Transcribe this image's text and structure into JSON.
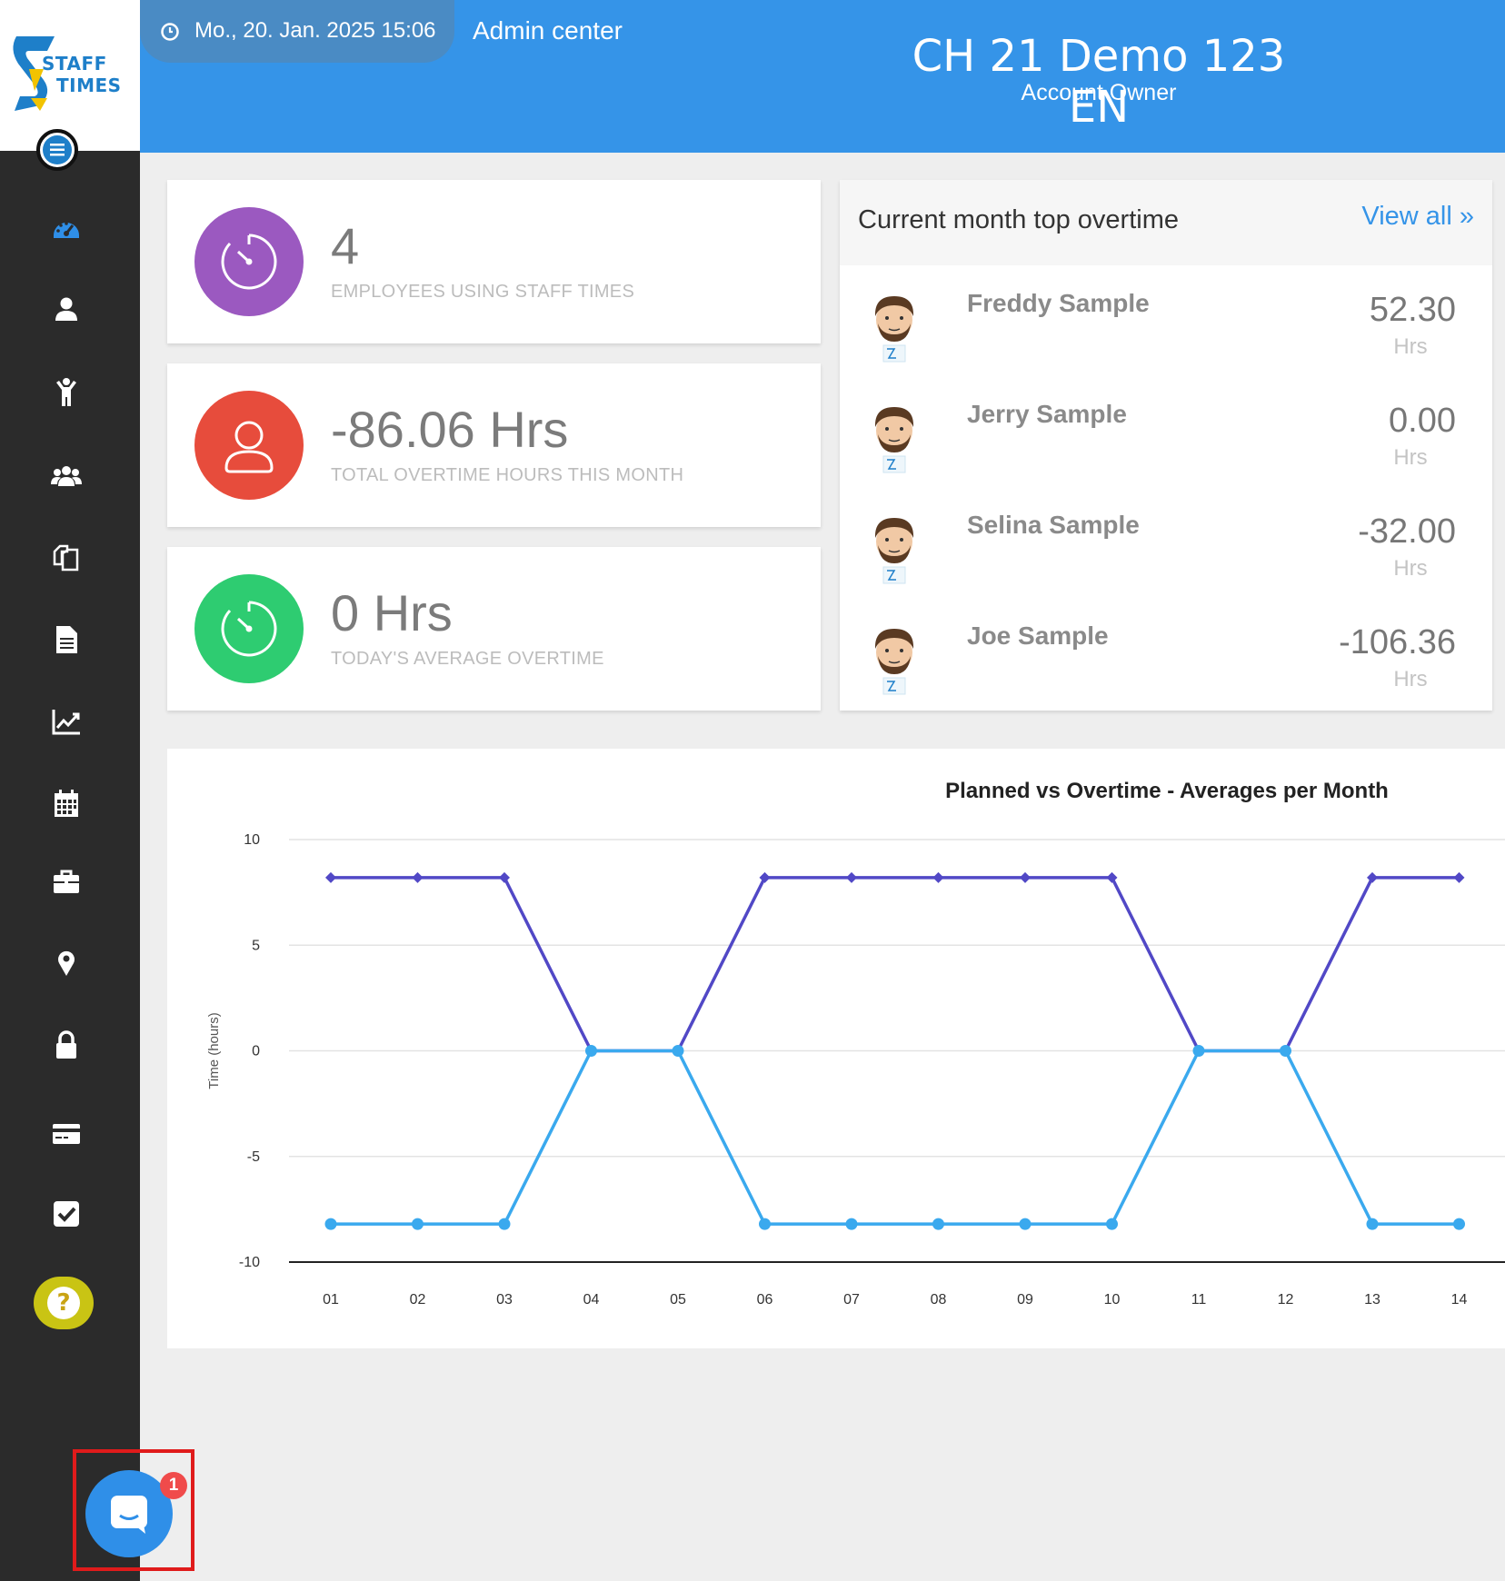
{
  "header": {
    "datetime": "Mo., 20. Jan. 2025 15:06",
    "admin_center": "Admin center",
    "company_name": "CH 21 Demo 123 EN",
    "role": "Account Owner"
  },
  "logo": {
    "word1": "STAFF",
    "word2": "TIMES"
  },
  "sidebar": {
    "items": [
      {
        "name": "dashboard",
        "icon": "dashboard-icon",
        "active": true
      },
      {
        "name": "profile",
        "icon": "user-icon"
      },
      {
        "name": "employees",
        "icon": "person-raised-arms-icon"
      },
      {
        "name": "teams",
        "icon": "group-icon"
      },
      {
        "name": "documents",
        "icon": "copy-icon"
      },
      {
        "name": "reports",
        "icon": "file-text-icon"
      },
      {
        "name": "statistics",
        "icon": "line-chart-icon"
      },
      {
        "name": "calendar",
        "icon": "calendar-icon"
      },
      {
        "name": "projects",
        "icon": "briefcase-icon"
      },
      {
        "name": "locations",
        "icon": "map-pin-icon"
      },
      {
        "name": "security",
        "icon": "lock-icon"
      },
      {
        "name": "billing",
        "icon": "credit-card-icon"
      },
      {
        "name": "tasks",
        "icon": "checkbox-icon"
      }
    ],
    "help_label": "?"
  },
  "stats": [
    {
      "value": "4",
      "label": "EMPLOYEES USING STAFF TIMES",
      "color": "#9b59c0"
    },
    {
      "value": "-86.06 Hrs",
      "label": "TOTAL OVERTIME HOURS THIS MONTH",
      "color": "#e74c3c"
    },
    {
      "value": "0 Hrs",
      "label": "TODAY'S AVERAGE OVERTIME",
      "color": "#2ecc71"
    }
  ],
  "top_overtime": {
    "title": "Current month top overtime",
    "view_all": "View all",
    "unit": "Hrs",
    "rows": [
      {
        "name": "Freddy Sample",
        "hours": "52.30"
      },
      {
        "name": "Jerry Sample",
        "hours": "0.00"
      },
      {
        "name": "Selina Sample",
        "hours": "-32.00"
      },
      {
        "name": "Joe Sample",
        "hours": "-106.36"
      }
    ]
  },
  "chat": {
    "badge": "1"
  },
  "chart_data": {
    "type": "line",
    "title": "Planned vs Overtime - Averages per Month",
    "ylabel": "Time (hours)",
    "xlabel": "",
    "categories": [
      "01",
      "02",
      "03",
      "04",
      "05",
      "06",
      "07",
      "08",
      "09",
      "10",
      "11",
      "12",
      "13",
      "14"
    ],
    "ylim": [
      -10,
      10
    ],
    "yticks": [
      10,
      5,
      0,
      -5,
      -10
    ],
    "grid": true,
    "series": [
      {
        "color": "#5148c6",
        "marker": "diamond",
        "values": [
          8.2,
          8.2,
          8.2,
          0,
          0,
          8.2,
          8.2,
          8.2,
          8.2,
          8.2,
          0,
          0,
          8.2,
          8.2
        ]
      },
      {
        "color": "#3aa9ee",
        "marker": "circle",
        "values": [
          -8.2,
          -8.2,
          -8.2,
          0,
          0,
          -8.2,
          -8.2,
          -8.2,
          -8.2,
          -8.2,
          0,
          0,
          -8.2,
          -8.2
        ]
      }
    ]
  }
}
